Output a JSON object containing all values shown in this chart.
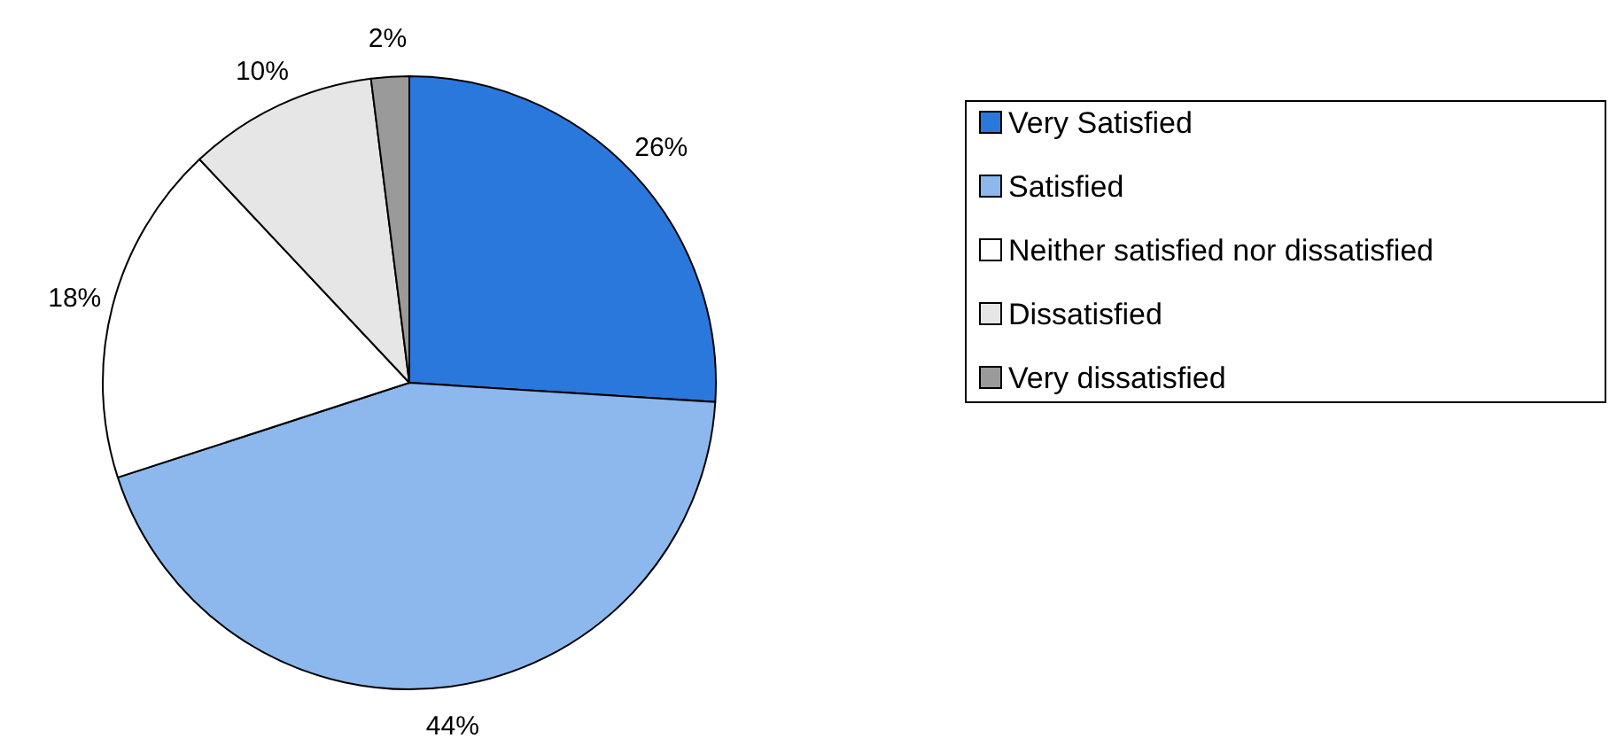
{
  "chart_data": {
    "type": "pie",
    "categories": [
      "Very Satisfied",
      "Satisfied",
      "Neither satisfied nor dissatisfied",
      "Dissatisfied",
      "Very dissatisfied"
    ],
    "values": [
      26,
      44,
      18,
      10,
      2
    ],
    "colors": [
      "#2a78dc",
      "#8cb8ee",
      "#ffffff",
      "#e6e6e6",
      "#9a9a9a"
    ],
    "value_labels": [
      "26%",
      "44%",
      "18%",
      "10%",
      "2%"
    ],
    "legend": "right"
  }
}
